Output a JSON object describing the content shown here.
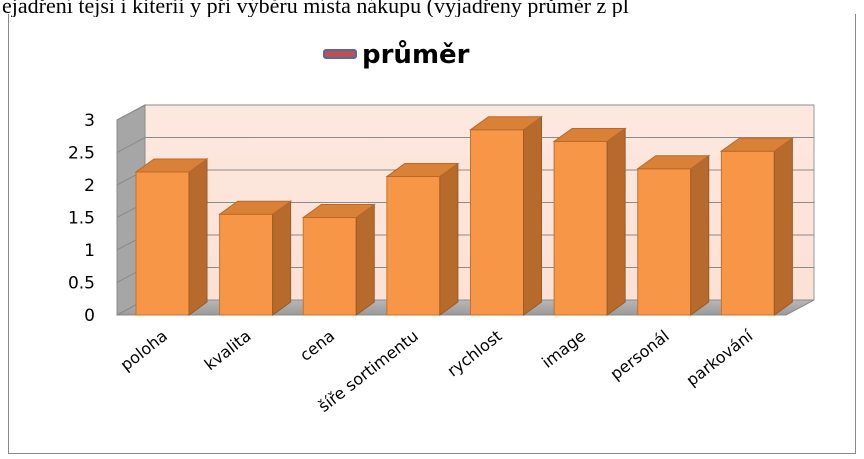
{
  "header_text": "ejadření tejsi i kiterii y při výběru místa nákupu (vyjadřeny průměr z pl",
  "chart_data": {
    "type": "bar",
    "title": "",
    "legend": "průměr",
    "legend_position": "top",
    "categories": [
      "poloha",
      "kvalita",
      "cena",
      "šíře sortimentu",
      "rychlost",
      "image",
      "personál",
      "parkování"
    ],
    "series": [
      {
        "name": "průměr",
        "values": [
          2.2,
          1.55,
          1.5,
          2.13,
          2.85,
          2.67,
          2.25,
          2.52
        ]
      }
    ],
    "ylim": [
      0,
      3
    ],
    "yticks": [
      "0",
      "0.5",
      "1",
      "1.5",
      "2",
      "2.5",
      "3"
    ],
    "xlabel": "",
    "ylabel": "",
    "grid": true,
    "bar_color": "#f79646",
    "legend_marker_color": "#c0504d"
  }
}
